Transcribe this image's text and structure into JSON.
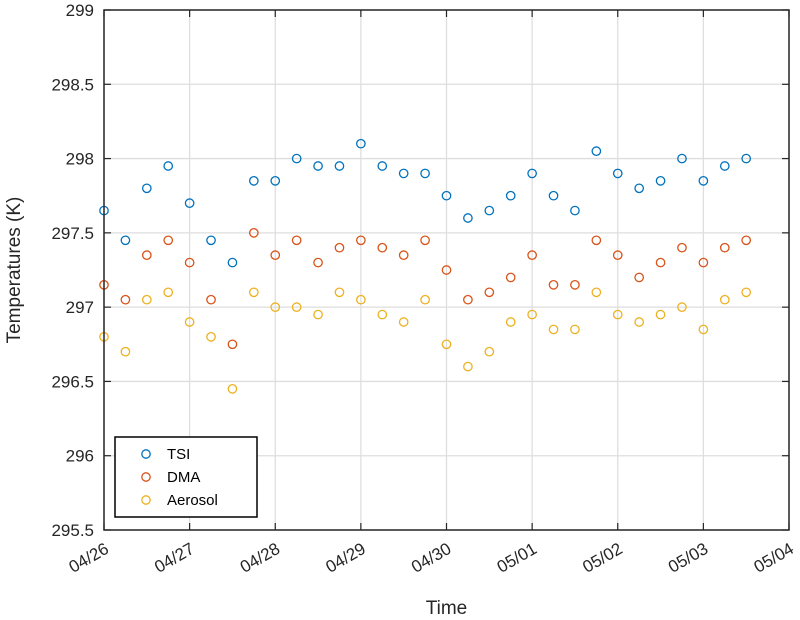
{
  "chart_data": {
    "type": "scatter",
    "xlabel": "Time",
    "ylabel": "Temperatures (K)",
    "x_axis": {
      "unit": "days",
      "range": [
        "04/26",
        "05/04"
      ],
      "tick_labels": [
        "04/26",
        "04/27",
        "04/28",
        "04/29",
        "04/30",
        "05/01",
        "05/02",
        "05/03",
        "05/04"
      ]
    },
    "y_axis": {
      "range": [
        295.5,
        299
      ],
      "tick_values": [
        295.5,
        296,
        296.5,
        297,
        297.5,
        298,
        298.5,
        299
      ],
      "tick_labels": [
        "295.5",
        "296",
        "296.5",
        "297",
        "297.5",
        "298",
        "298.5",
        "299"
      ]
    },
    "grid": true,
    "legend_position": "bottom-left",
    "marker": "open-circle",
    "x": [
      "04/26 00:00",
      "04/26 06:00",
      "04/26 12:00",
      "04/26 18:00",
      "04/27 00:00",
      "04/27 06:00",
      "04/27 12:00",
      "04/27 18:00",
      "04/28 00:00",
      "04/28 06:00",
      "04/28 12:00",
      "04/28 18:00",
      "04/29 00:00",
      "04/29 06:00",
      "04/29 12:00",
      "04/29 18:00",
      "04/30 00:00",
      "04/30 06:00",
      "04/30 12:00",
      "04/30 18:00",
      "05/01 00:00",
      "05/01 06:00",
      "05/01 12:00",
      "05/01 18:00",
      "05/02 00:00",
      "05/02 06:00",
      "05/02 12:00",
      "05/02 18:00",
      "05/03 00:00",
      "05/03 06:00",
      "05/03 12:00"
    ],
    "series": [
      {
        "name": "TSI",
        "color": "#0072BD",
        "values": [
          297.65,
          297.45,
          297.8,
          297.95,
          297.7,
          297.45,
          297.3,
          297.85,
          297.85,
          298.0,
          297.95,
          297.95,
          298.1,
          297.95,
          297.9,
          297.9,
          297.75,
          297.6,
          297.65,
          297.75,
          297.9,
          297.75,
          297.65,
          298.05,
          297.9,
          297.8,
          297.85,
          298.0,
          297.85,
          297.95,
          298.0
        ]
      },
      {
        "name": "DMA",
        "color": "#D95319",
        "values": [
          297.15,
          297.05,
          297.35,
          297.45,
          297.3,
          297.05,
          296.75,
          297.5,
          297.35,
          297.45,
          297.3,
          297.4,
          297.45,
          297.4,
          297.35,
          297.45,
          297.25,
          297.05,
          297.1,
          297.2,
          297.35,
          297.15,
          297.15,
          297.45,
          297.35,
          297.2,
          297.3,
          297.4,
          297.3,
          297.4,
          297.45
        ]
      },
      {
        "name": "Aerosol",
        "color": "#EDB120",
        "values": [
          296.8,
          296.7,
          297.05,
          297.1,
          296.9,
          296.8,
          296.45,
          297.1,
          297.0,
          297.0,
          296.95,
          297.1,
          297.05,
          296.95,
          296.9,
          297.05,
          296.75,
          296.6,
          296.7,
          296.9,
          296.95,
          296.85,
          296.85,
          297.1,
          296.95,
          296.9,
          296.95,
          297.0,
          296.85,
          297.05,
          297.1
        ]
      }
    ]
  }
}
